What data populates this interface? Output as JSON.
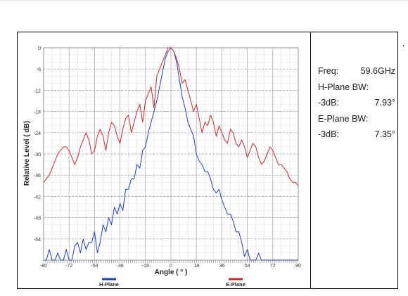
{
  "info_panel": {
    "freq_label": "Freq:",
    "freq_value": "59.6GHz",
    "h_plane_bw_label": "H-Plane BW:",
    "h_db_label": "-3dB:",
    "h_db_value": "7.93°",
    "e_plane_bw_label": "E-Plane BW:",
    "e_db_label": "-3dB:",
    "e_db_value": "7.35°"
  },
  "chart_data": {
    "type": "line",
    "title": "",
    "xlabel": "Angle ( ° )",
    "ylabel": "Relative Level ( dB)",
    "xlim": [
      -90,
      90
    ],
    "ylim": [
      -60,
      0
    ],
    "x_ticks": [
      -90,
      -72,
      -54,
      -36,
      -18,
      0,
      18,
      36,
      54,
      72,
      90
    ],
    "y_ticks": [
      0,
      -6,
      -12,
      -18,
      -24,
      -30,
      -36,
      -42,
      -48,
      -54
    ],
    "grid": true,
    "legend_placement": "bottom",
    "series": [
      {
        "name": "H-Plane",
        "color": "#1f3fbf",
        "x": [
          -90,
          -88,
          -86,
          -84,
          -82,
          -80,
          -78,
          -76,
          -74,
          -72,
          -70,
          -68,
          -66,
          -64,
          -62,
          -60,
          -58,
          -56,
          -54,
          -52,
          -50,
          -48,
          -46,
          -44,
          -42,
          -40,
          -38,
          -36,
          -34,
          -32,
          -30,
          -28,
          -26,
          -24,
          -22,
          -20,
          -18,
          -16,
          -14,
          -12,
          -10,
          -8,
          -6,
          -4,
          -2,
          0,
          2,
          4,
          6,
          8,
          10,
          12,
          14,
          16,
          18,
          20,
          22,
          24,
          26,
          28,
          30,
          32,
          34,
          36,
          38,
          40,
          42,
          44,
          46,
          48,
          50,
          52,
          54,
          56,
          58,
          60,
          62,
          64,
          66,
          68,
          70,
          72,
          74,
          76,
          78,
          80,
          82,
          84,
          86,
          88,
          90
        ],
        "y": [
          -60,
          -60,
          -57,
          -60,
          -60,
          -58,
          -60,
          -60,
          -57,
          -60,
          -60,
          -56,
          -55,
          -58,
          -54,
          -57,
          -55,
          -55,
          -52,
          -58,
          -55,
          -50,
          -52,
          -48,
          -50,
          -45,
          -47,
          -44,
          -46,
          -40,
          -40,
          -37,
          -37,
          -33,
          -34,
          -29,
          -28,
          -24,
          -21,
          -18,
          -15,
          -11,
          -7,
          -3,
          -1,
          0,
          -1,
          -4,
          -9,
          -14,
          -17,
          -21,
          -23,
          -25,
          -30,
          -32,
          -33,
          -35,
          -35,
          -37,
          -40,
          -41,
          -40,
          -43,
          -45,
          -47,
          -47,
          -49,
          -52,
          -52,
          -55,
          -59,
          -57,
          -60,
          -60,
          -60,
          -58,
          -60,
          -60,
          -60,
          -60,
          -60,
          -60,
          -60,
          -60,
          -60,
          -60,
          -60,
          -60,
          -60,
          -60
        ]
      },
      {
        "name": "E-Plane",
        "color": "#cc2a2a",
        "x": [
          -90,
          -88,
          -86,
          -84,
          -82,
          -80,
          -78,
          -76,
          -74,
          -72,
          -70,
          -68,
          -66,
          -64,
          -62,
          -60,
          -58,
          -56,
          -54,
          -52,
          -50,
          -48,
          -46,
          -44,
          -42,
          -40,
          -38,
          -36,
          -34,
          -32,
          -30,
          -28,
          -26,
          -24,
          -22,
          -20,
          -18,
          -16,
          -14,
          -12,
          -10,
          -8,
          -6,
          -4,
          -2,
          0,
          2,
          4,
          6,
          8,
          10,
          12,
          14,
          16,
          18,
          20,
          22,
          24,
          26,
          28,
          30,
          32,
          34,
          36,
          38,
          40,
          42,
          44,
          46,
          48,
          50,
          52,
          54,
          56,
          58,
          60,
          62,
          64,
          66,
          68,
          70,
          72,
          74,
          76,
          78,
          80,
          82,
          84,
          86,
          88,
          90
        ],
        "y": [
          -38,
          -37,
          -36,
          -34,
          -32,
          -30,
          -29,
          -28,
          -28,
          -29,
          -31,
          -33,
          -31,
          -28,
          -26,
          -24,
          -26,
          -30,
          -29,
          -25,
          -23,
          -25,
          -29,
          -24,
          -21,
          -22,
          -25,
          -27,
          -23,
          -20,
          -19,
          -24,
          -21,
          -18,
          -16,
          -21,
          -15,
          -13,
          -11,
          -17,
          -8,
          -6,
          -4,
          -2,
          0,
          0,
          -1,
          -3,
          -6,
          -10,
          -9,
          -12,
          -15,
          -18,
          -16,
          -20,
          -24,
          -21,
          -22,
          -19,
          -21,
          -25,
          -22,
          -24,
          -26,
          -27,
          -23,
          -24,
          -27,
          -28,
          -26,
          -28,
          -31,
          -29,
          -27,
          -28,
          -31,
          -33,
          -32,
          -30,
          -28,
          -29,
          -31,
          -33,
          -33,
          -34,
          -35,
          -37,
          -38,
          -38,
          -39
        ]
      }
    ]
  }
}
